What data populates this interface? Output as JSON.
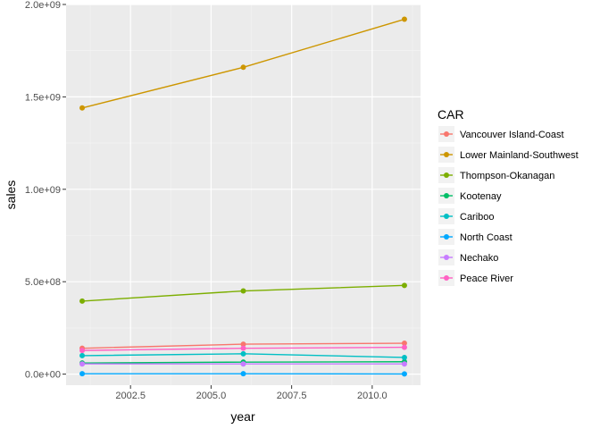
{
  "chart_data": {
    "type": "line",
    "xlabel": "year",
    "ylabel": "sales",
    "x": [
      2001,
      2006,
      2011
    ],
    "xlim": [
      2000.5,
      2011.5
    ],
    "ylim": [
      -60000000,
      2000000000
    ],
    "x_ticks": [
      2002.5,
      2005.0,
      2007.5,
      2010.0
    ],
    "x_tick_labels": [
      "2002.5",
      "2005.0",
      "2007.5",
      "2010.0"
    ],
    "y_ticks": [
      0,
      500000000,
      1000000000,
      1500000000,
      2000000000
    ],
    "y_tick_labels": [
      "0.0e+00",
      "5.0e+08",
      "1.0e+09",
      "1.5e+09",
      "2.0e+09"
    ],
    "grid": true,
    "legend": {
      "title": "CAR",
      "position": "right"
    },
    "series": [
      {
        "name": "Vancouver Island-Coast",
        "color": "#F8766D",
        "values": [
          140000000,
          162000000,
          167000000
        ]
      },
      {
        "name": "Lower Mainland-Southwest",
        "color": "#CD9600",
        "values": [
          1440000000,
          1660000000,
          1920000000
        ]
      },
      {
        "name": "Thompson-Okanagan",
        "color": "#7CAE00",
        "values": [
          395000000,
          450000000,
          480000000
        ]
      },
      {
        "name": "Kootenay",
        "color": "#00BE67",
        "values": [
          60000000,
          65000000,
          67000000
        ]
      },
      {
        "name": "Cariboo",
        "color": "#00BFC4",
        "values": [
          100000000,
          110000000,
          90000000
        ]
      },
      {
        "name": "North Coast",
        "color": "#00A9FF",
        "values": [
          2000000,
          2000000,
          1000000
        ]
      },
      {
        "name": "Nechako",
        "color": "#C77CFF",
        "values": [
          55000000,
          55000000,
          55000000
        ]
      },
      {
        "name": "Peace River",
        "color": "#FF61C3",
        "values": [
          128000000,
          140000000,
          145000000
        ]
      }
    ]
  }
}
